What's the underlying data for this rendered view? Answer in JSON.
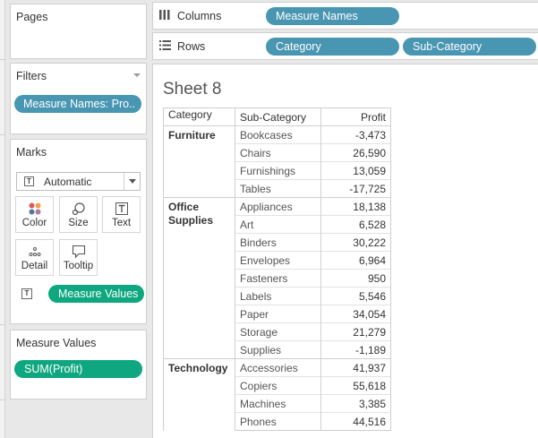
{
  "pages": {
    "title": "Pages"
  },
  "filters": {
    "title": "Filters",
    "pill": "Measure Names: Pro.."
  },
  "marks": {
    "title": "Marks",
    "mark_type": "Automatic",
    "buttons": [
      {
        "label": "Color",
        "icon": "color-dots-icon"
      },
      {
        "label": "Size",
        "icon": "size-icon"
      },
      {
        "label": "Text",
        "icon": "text-icon"
      },
      {
        "label": "Detail",
        "icon": "detail-dots-icon"
      },
      {
        "label": "Tooltip",
        "icon": "tooltip-icon"
      }
    ],
    "field_pill": "Measure Values"
  },
  "measure_values": {
    "title": "Measure Values",
    "pill": "SUM(Profit)"
  },
  "columns": {
    "label": "Columns",
    "pills": [
      "Measure Names"
    ]
  },
  "rows": {
    "label": "Rows",
    "pills": [
      "Category",
      "Sub-Category"
    ]
  },
  "sheet": {
    "title": "Sheet 8",
    "headers": {
      "category": "Category",
      "sub_category": "Sub-Category",
      "profit": "Profit"
    },
    "groups": [
      {
        "category": "Furniture",
        "rows": [
          {
            "sub": "Bookcases",
            "profit": "-3,473"
          },
          {
            "sub": "Chairs",
            "profit": "26,590"
          },
          {
            "sub": "Furnishings",
            "profit": "13,059"
          },
          {
            "sub": "Tables",
            "profit": "-17,725"
          }
        ]
      },
      {
        "category": "Office Supplies",
        "rows": [
          {
            "sub": "Appliances",
            "profit": "18,138"
          },
          {
            "sub": "Art",
            "profit": "6,528"
          },
          {
            "sub": "Binders",
            "profit": "30,222"
          },
          {
            "sub": "Envelopes",
            "profit": "6,964"
          },
          {
            "sub": "Fasteners",
            "profit": "950"
          },
          {
            "sub": "Labels",
            "profit": "5,546"
          },
          {
            "sub": "Paper",
            "profit": "34,054"
          },
          {
            "sub": "Storage",
            "profit": "21,279"
          },
          {
            "sub": "Supplies",
            "profit": "-1,189"
          }
        ]
      },
      {
        "category": "Technology",
        "rows": [
          {
            "sub": "Accessories",
            "profit": "41,937"
          },
          {
            "sub": "Copiers",
            "profit": "55,618"
          },
          {
            "sub": "Machines",
            "profit": "3,385"
          },
          {
            "sub": "Phones",
            "profit": "44,516"
          }
        ]
      }
    ]
  },
  "colors": {
    "dimension_pill": "#4996b2",
    "measure_pill": "#0fa77f"
  }
}
